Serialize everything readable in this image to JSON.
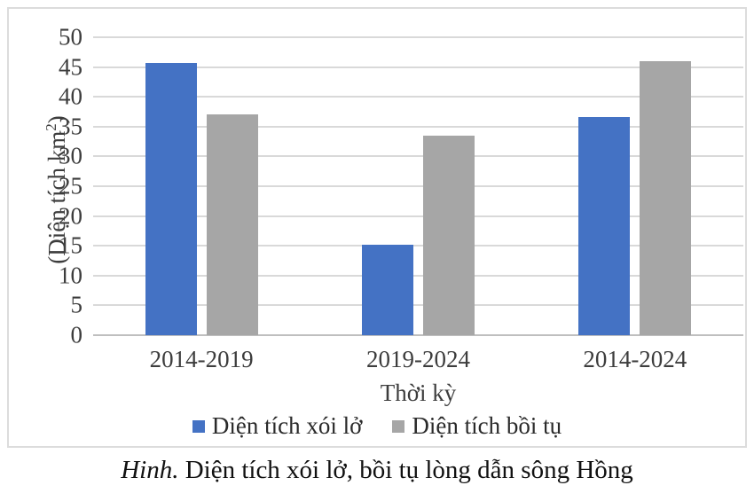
{
  "figure": {
    "caption_label": "Hinh.",
    "caption_text": "Diện tích xói lở, bồi tụ lòng dẫn sông Hồng"
  },
  "axes": {
    "y_title_prefix": "(Diện tích km",
    "y_title_sup": "2",
    "y_title_suffix": ")",
    "x_title": "Thời kỳ"
  },
  "colors": {
    "erosion_blue": "#4472C4",
    "accretion_gray": "#A6A6A6",
    "gridline": "#D9D9D9",
    "axis_line": "#BFBFBF",
    "border": "#DCDCDC",
    "axis_text": "#3D3D3D"
  },
  "chart_data": {
    "type": "bar",
    "title": "",
    "categories": [
      "2014-2019",
      "2019-2024",
      "2014-2024"
    ],
    "series": [
      {
        "name": "Diện tích xói lở",
        "color": "#4472C4",
        "values": [
          45.7,
          15.2,
          36.6
        ]
      },
      {
        "name": "Diện tích bồi tụ",
        "color": "#A6A6A6",
        "values": [
          37.1,
          33.5,
          46.0
        ]
      }
    ],
    "xlabel": "Thời kỳ",
    "ylabel": "(Diện tích km2)",
    "ylim": [
      0,
      50
    ],
    "ytick_step": 5,
    "yticks": [
      0,
      5,
      10,
      15,
      20,
      25,
      30,
      35,
      40,
      45,
      50
    ],
    "grid": true,
    "legend_position": "bottom"
  }
}
